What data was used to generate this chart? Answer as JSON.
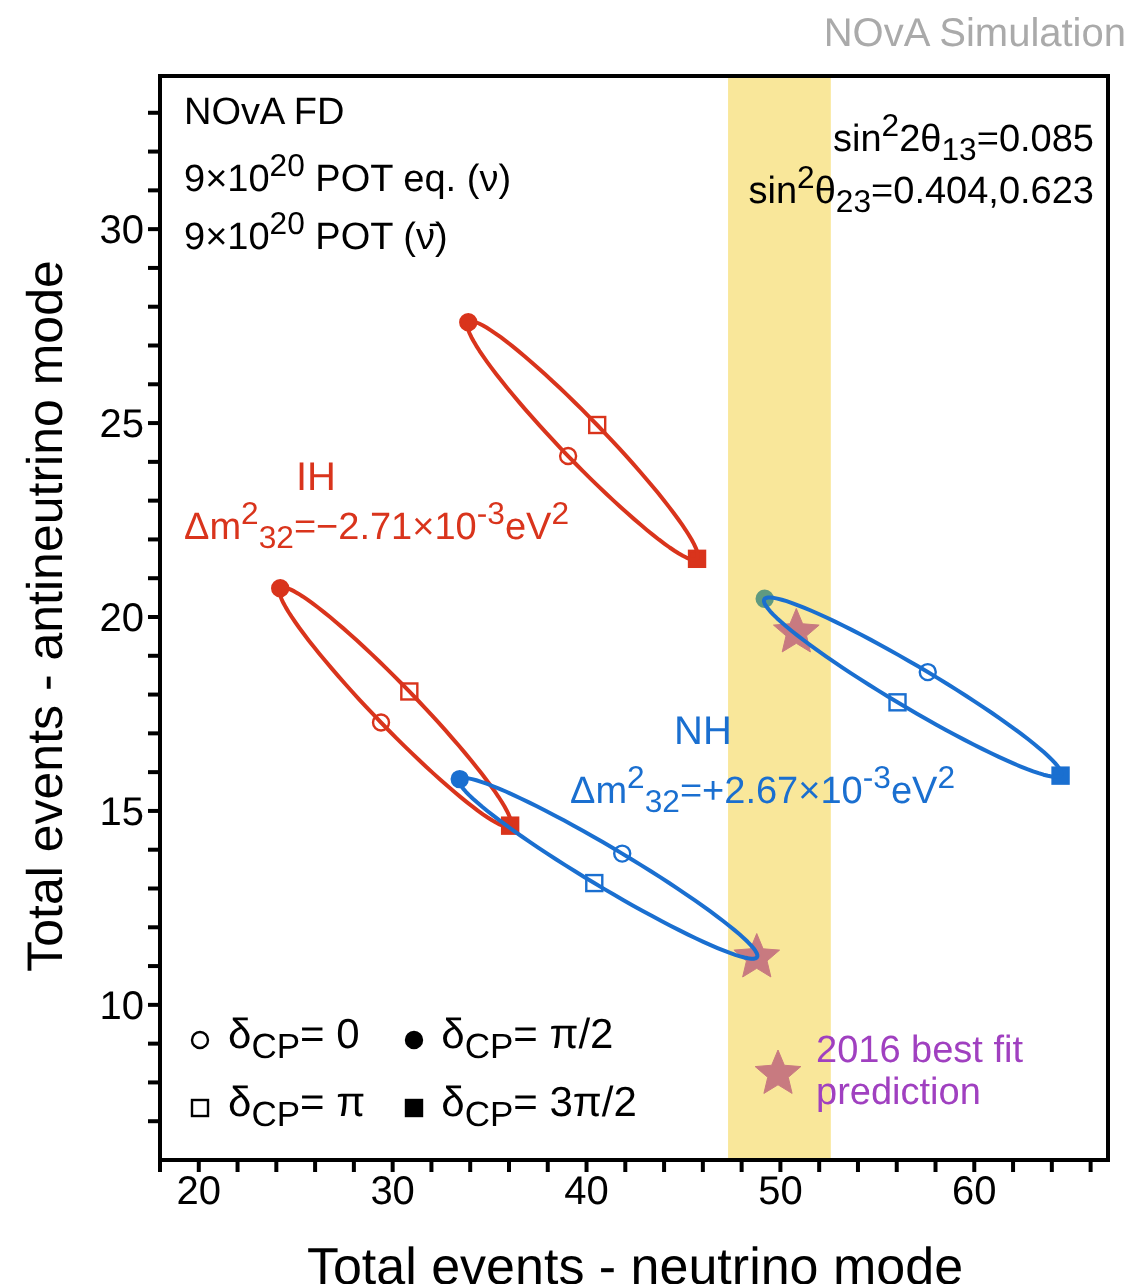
{
  "chart_data": {
    "type": "scatter",
    "xlabel": "Total events - neutrino mode",
    "ylabel": "Total events - antineutrino mode",
    "xlim": [
      18,
      67
    ],
    "ylim": [
      6,
      34
    ],
    "xticks": [
      {
        "value": 18,
        "label": null
      },
      20,
      {
        "value": 22,
        "label": null
      },
      {
        "value": 24,
        "label": null
      },
      {
        "value": 26,
        "label": null
      },
      {
        "value": 28,
        "label": null
      },
      30,
      {
        "value": 32,
        "label": null
      },
      {
        "value": 34,
        "label": null
      },
      {
        "value": 36,
        "label": null
      },
      {
        "value": 38,
        "label": null
      },
      40,
      {
        "value": 42,
        "label": null
      },
      {
        "value": 44,
        "label": null
      },
      {
        "value": 46,
        "label": null
      },
      {
        "value": 48,
        "label": null
      },
      50,
      {
        "value": 52,
        "label": null
      },
      {
        "value": 54,
        "label": null
      },
      {
        "value": 56,
        "label": null
      },
      {
        "value": 58,
        "label": null
      },
      60,
      {
        "value": 62,
        "label": null
      },
      {
        "value": 64,
        "label": null
      },
      {
        "value": 66,
        "label": null
      }
    ],
    "yticks": [
      {
        "value": 7,
        "label": null
      },
      {
        "value": 8,
        "label": null
      },
      {
        "value": 9,
        "label": null
      },
      10,
      {
        "value": 11,
        "label": null
      },
      {
        "value": 12,
        "label": null
      },
      {
        "value": 13,
        "label": null
      },
      {
        "value": 14,
        "label": null
      },
      15,
      {
        "value": 16,
        "label": null
      },
      {
        "value": 17,
        "label": null
      },
      {
        "value": 18,
        "label": null
      },
      {
        "value": 19,
        "label": null
      },
      20,
      {
        "value": 21,
        "label": null
      },
      {
        "value": 22,
        "label": null
      },
      {
        "value": 23,
        "label": null
      },
      {
        "value": 24,
        "label": null
      },
      25,
      {
        "value": 26,
        "label": null
      },
      {
        "value": 27,
        "label": null
      },
      {
        "value": 28,
        "label": null
      },
      {
        "value": 29,
        "label": null
      },
      30,
      {
        "value": 31,
        "label": null
      },
      {
        "value": 32,
        "label": null
      },
      {
        "value": 33,
        "label": null
      }
    ],
    "legend": "bottom right",
    "bands": [
      {
        "axis": "x",
        "from": 47.3,
        "to": 52.6,
        "color": "#f9e79a"
      }
    ],
    "series": [
      {
        "marker": "circle",
        "color": "#000000",
        "x": [
          39.05,
          29.4,
          41.84,
          57.6
        ],
        "values": [
          24.15,
          17.28,
          13.9,
          18.58
        ],
        "colors": [
          "#d9341c",
          "#d9341c",
          "#1a6fd0",
          "#1a6fd0"
        ]
      },
      {
        "marker": "circle",
        "color": "#000000",
        "x": [
          33.9,
          24.2,
          33.46,
          49.19
        ],
        "values": [
          27.6,
          20.74,
          15.82,
          20.47
        ],
        "colors": [
          "#d9341c",
          "#d9341c",
          "#1a6fd0",
          "#5f9a80"
        ]
      },
      {
        "marker": "square",
        "color": "#000000",
        "x": [
          40.55,
          30.86,
          40.4,
          56.04
        ],
        "values": [
          24.95,
          18.08,
          13.14,
          17.8
        ],
        "colors": [
          "#d9341c",
          "#d9341c",
          "#1a6fd0",
          "#1a6fd0"
        ]
      },
      {
        "marker": "square",
        "color": "#000000",
        "x": [
          45.7,
          36.06,
          48.78,
          64.45
        ],
        "values": [
          21.5,
          14.62,
          null,
          15.91
        ],
        "colors": [
          "#d9341c",
          "#d9341c",
          "#1a6fd0",
          "#1a6fd0"
        ]
      },
      {
        "name": "2016 best fit prediction",
        "marker": "star",
        "color": "#c87a80",
        "x": [
          48.78,
          50.82
        ],
        "values": [
          11.22,
          19.6
        ]
      }
    ],
    "annotations": [
      "NOvA Simulation",
      "NOvA FD",
      "9×10$^{20}$ POT eq. (ν)",
      "9×10$^{20}$ POT (ν̄)",
      "sin$^{2}$2θ$_{13}$=0.085",
      "sin$^{2}$θ$_{23}$=0.404,0.623",
      "IH",
      "Δm$^{2}$$_{32}$=−2.71×10$^{-3}$eV$^{2}$",
      "NH",
      "Δm$^{2}$$_{32}$=+2.67×10$^{-3}$eV$^{2}$",
      "δ$_{CP}$= 0",
      "δ$_{CP}$= π/2",
      "δ$_{CP}$= π",
      "δ$_{CP}$= 3π/2"
    ]
  }
}
